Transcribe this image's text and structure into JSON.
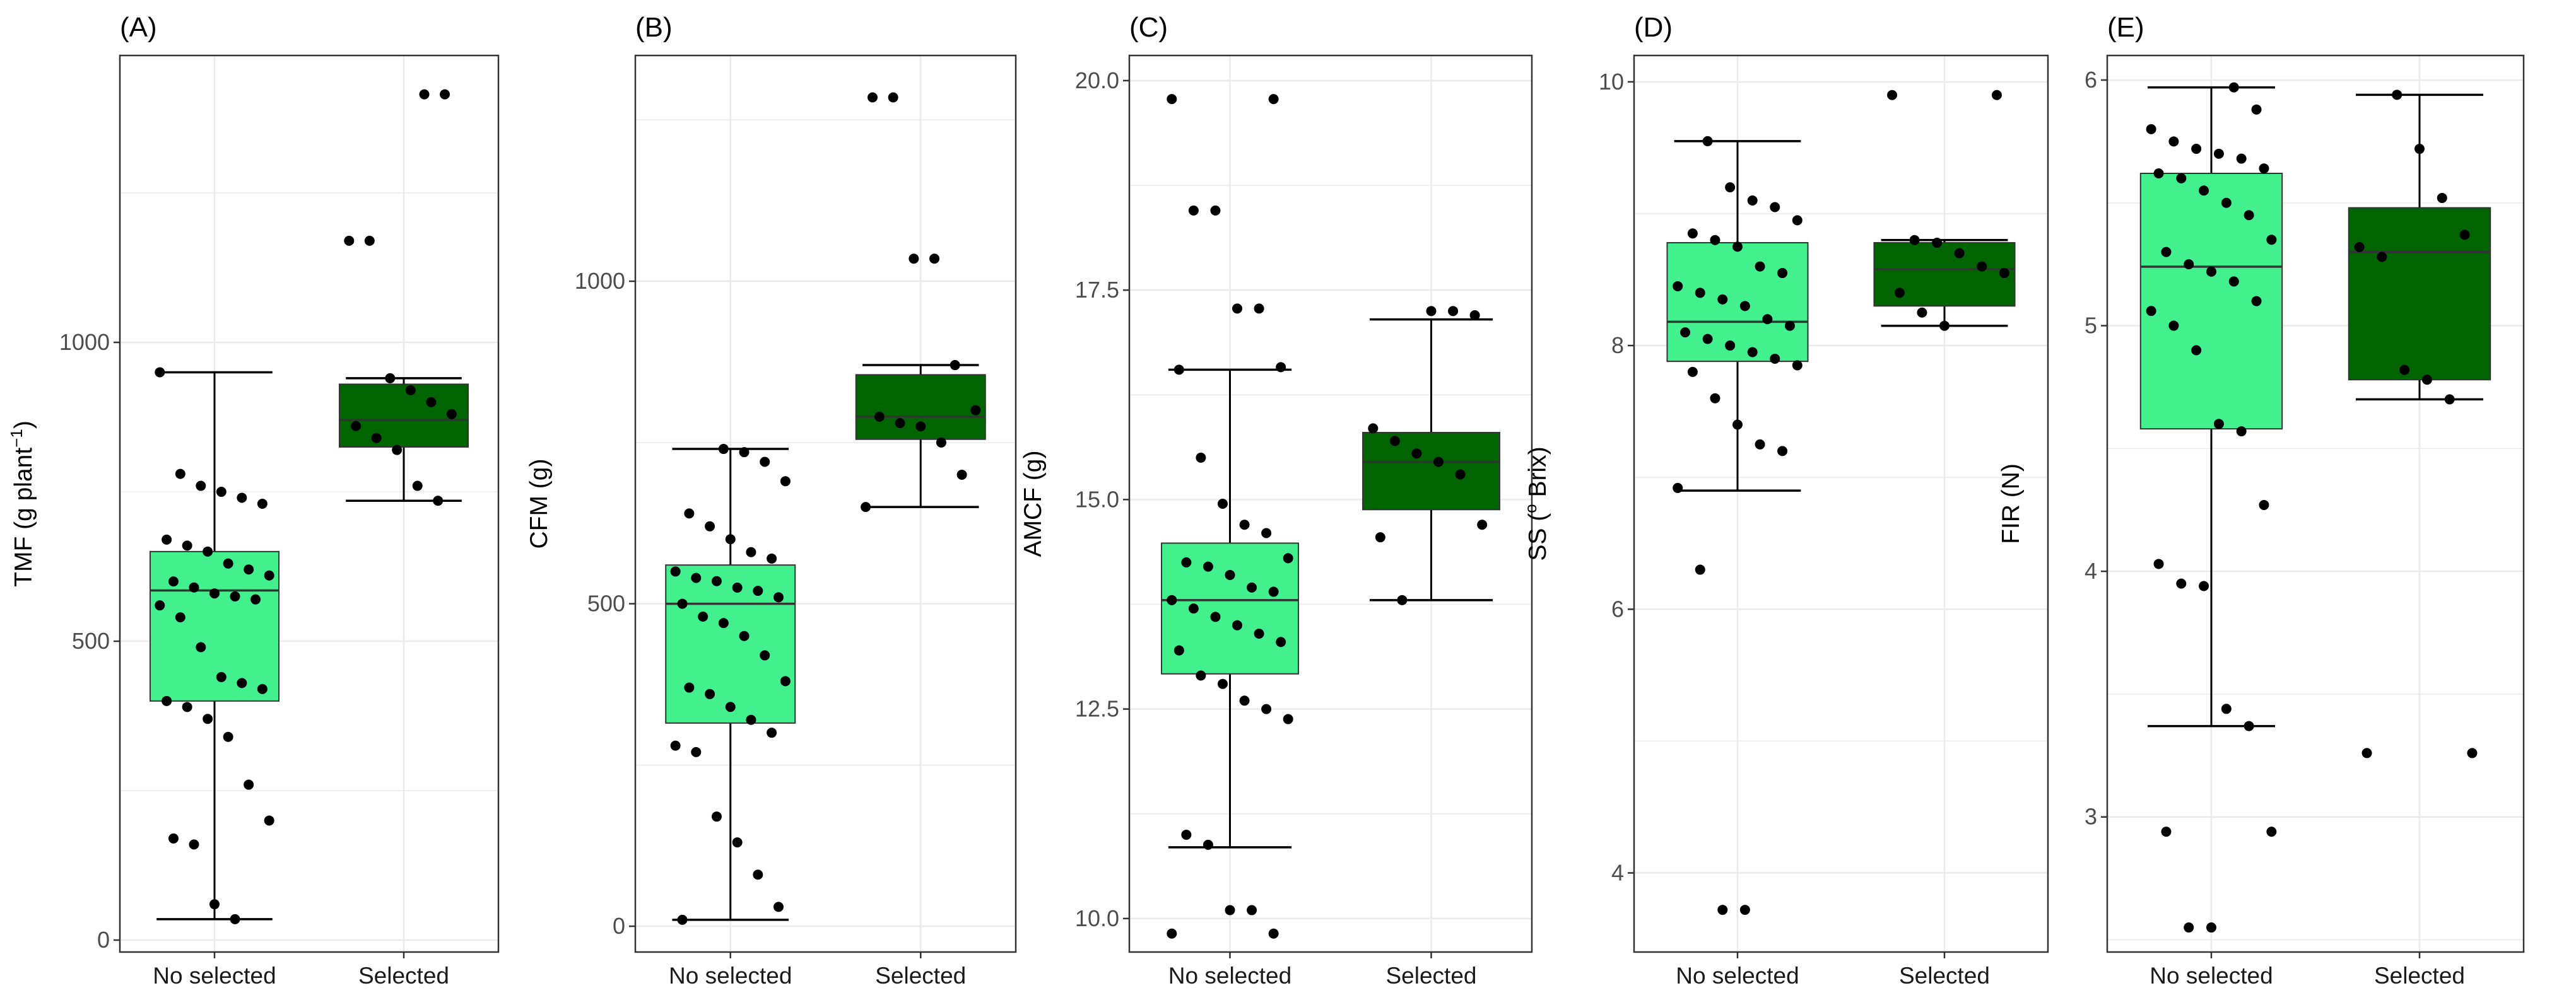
{
  "figure": {
    "panel_count": 5,
    "colors": {
      "no_selected": "#42f08e",
      "selected": "#006400",
      "points": "#000000",
      "grid": "#ebebeb",
      "panel_border": "#333333"
    }
  },
  "chart_data": [
    {
      "type": "box",
      "panel": "(A)",
      "ylabel": "TMF (g plant",
      "ylabel_sup": "−1",
      "ylabel_close": ")",
      "categories": [
        "No selected",
        "Selected"
      ],
      "ylim": [
        -20,
        1480
      ],
      "yticks": [
        0,
        500,
        1000
      ],
      "ytick_labels": [
        "0",
        "500",
        "1000"
      ],
      "boxes": [
        {
          "name": "No selected",
          "whisker_low": 35,
          "q1": 400,
          "median": 585,
          "q3": 650,
          "whisker_high": 950,
          "points": [
            950,
            780,
            760,
            750,
            740,
            730,
            670,
            660,
            650,
            630,
            620,
            610,
            600,
            590,
            580,
            575,
            570,
            560,
            540,
            490,
            440,
            430,
            420,
            400,
            390,
            370,
            340,
            260,
            200,
            170,
            160,
            60,
            35
          ]
        },
        {
          "name": "Selected",
          "whisker_low": 735,
          "q1": 825,
          "median": 870,
          "q3": 930,
          "whisker_high": 940,
          "points": [
            1415,
            1415,
            1170,
            1170,
            940,
            920,
            900,
            880,
            860,
            840,
            820,
            760,
            735
          ]
        }
      ]
    },
    {
      "type": "box",
      "panel": "(B)",
      "ylabel": "CFM (g)",
      "ylabel_sup": "",
      "ylabel_close": "",
      "categories": [
        "No selected",
        "Selected"
      ],
      "ylim": [
        -40,
        1350
      ],
      "yticks": [
        0,
        500,
        1000
      ],
      "ytick_labels": [
        "0",
        "500",
        "1000"
      ],
      "boxes": [
        {
          "name": "No selected",
          "whisker_low": 10,
          "q1": 315,
          "median": 500,
          "q3": 560,
          "whisker_high": 740,
          "points": [
            740,
            735,
            720,
            690,
            640,
            620,
            600,
            580,
            570,
            550,
            540,
            535,
            525,
            520,
            510,
            500,
            480,
            470,
            450,
            420,
            380,
            370,
            360,
            340,
            320,
            300,
            280,
            270,
            170,
            130,
            80,
            30,
            10
          ]
        },
        {
          "name": "Selected",
          "whisker_low": 650,
          "q1": 755,
          "median": 790,
          "q3": 855,
          "whisker_high": 870,
          "points": [
            1285,
            1285,
            1035,
            1035,
            870,
            800,
            790,
            780,
            775,
            750,
            700,
            650
          ]
        }
      ]
    },
    {
      "type": "box",
      "panel": "(C)",
      "ylabel": "AMCF (g)",
      "ylabel_sup": "",
      "ylabel_close": "",
      "categories": [
        "No selected",
        "Selected"
      ],
      "ylim": [
        9.6,
        20.3
      ],
      "yticks": [
        10.0,
        12.5,
        15.0,
        17.5,
        20.0
      ],
      "ytick_labels": [
        "10.0",
        "12.5",
        "15.0",
        "17.5",
        "20.0"
      ],
      "boxes": [
        {
          "name": "No selected",
          "whisker_low": 10.85,
          "q1": 12.92,
          "median": 13.8,
          "q3": 14.48,
          "whisker_high": 16.55,
          "points": [
            19.78,
            19.78,
            18.45,
            18.45,
            17.28,
            17.28,
            16.58,
            16.55,
            15.5,
            14.95,
            14.7,
            14.6,
            14.3,
            14.25,
            14.2,
            14.1,
            13.95,
            13.9,
            13.8,
            13.7,
            13.6,
            13.5,
            13.4,
            13.3,
            13.2,
            12.9,
            12.8,
            12.6,
            12.5,
            12.38,
            11.0,
            10.88,
            10.1,
            10.1,
            9.82,
            9.82
          ]
        },
        {
          "name": "Selected",
          "whisker_low": 13.8,
          "q1": 14.88,
          "median": 15.45,
          "q3": 15.8,
          "whisker_high": 17.15,
          "points": [
            17.25,
            17.25,
            17.2,
            15.85,
            15.7,
            15.55,
            15.45,
            15.3,
            14.7,
            14.55,
            13.8
          ]
        }
      ]
    },
    {
      "type": "box",
      "panel": "(D)",
      "ylabel": "SS (",
      "ylabel_sup": "o",
      "ylabel_close": " Brix)",
      "categories": [
        "No selected",
        "Selected"
      ],
      "ylim": [
        3.4,
        10.2
      ],
      "yticks": [
        4,
        6,
        8,
        10
      ],
      "ytick_labels": [
        "4",
        "6",
        "8",
        "10"
      ],
      "boxes": [
        {
          "name": "No selected",
          "whisker_low": 6.9,
          "q1": 7.88,
          "median": 8.18,
          "q3": 8.78,
          "whisker_high": 9.55,
          "points": [
            9.55,
            9.2,
            9.1,
            9.05,
            8.95,
            8.85,
            8.8,
            8.75,
            8.6,
            8.55,
            8.45,
            8.4,
            8.35,
            8.3,
            8.2,
            8.15,
            8.1,
            8.05,
            8.0,
            7.95,
            7.9,
            7.85,
            7.8,
            7.6,
            7.4,
            7.25,
            7.2,
            6.92,
            6.3,
            3.72,
            3.72
          ]
        },
        {
          "name": "Selected",
          "whisker_low": 8.15,
          "q1": 8.3,
          "median": 8.58,
          "q3": 8.78,
          "whisker_high": 8.8,
          "points": [
            9.9,
            9.9,
            8.8,
            8.78,
            8.7,
            8.6,
            8.55,
            8.4,
            8.25,
            8.15
          ]
        }
      ]
    },
    {
      "type": "box",
      "panel": "(E)",
      "ylabel": "FIR (N)",
      "ylabel_sup": "",
      "ylabel_close": "",
      "categories": [
        "No selected",
        "Selected"
      ],
      "ylim": [
        2.45,
        6.1
      ],
      "yticks": [
        3,
        4,
        5,
        6
      ],
      "ytick_labels": [
        "3",
        "4",
        "5",
        "6"
      ],
      "boxes": [
        {
          "name": "No selected",
          "whisker_low": 3.37,
          "q1": 4.58,
          "median": 5.24,
          "q3": 5.62,
          "whisker_high": 5.97,
          "points": [
            5.97,
            5.88,
            5.8,
            5.75,
            5.72,
            5.7,
            5.68,
            5.64,
            5.62,
            5.6,
            5.55,
            5.5,
            5.45,
            5.35,
            5.3,
            5.25,
            5.22,
            5.18,
            5.1,
            5.06,
            5.0,
            4.9,
            4.6,
            4.57,
            4.27,
            4.03,
            3.95,
            3.94,
            3.44,
            3.37,
            2.94,
            2.94,
            2.55,
            2.55
          ]
        },
        {
          "name": "Selected",
          "whisker_low": 4.7,
          "q1": 4.78,
          "median": 5.3,
          "q3": 5.48,
          "whisker_high": 5.94,
          "points": [
            5.94,
            5.72,
            5.52,
            5.37,
            5.32,
            5.28,
            4.82,
            4.78,
            4.7,
            3.26,
            3.26
          ]
        }
      ]
    }
  ]
}
